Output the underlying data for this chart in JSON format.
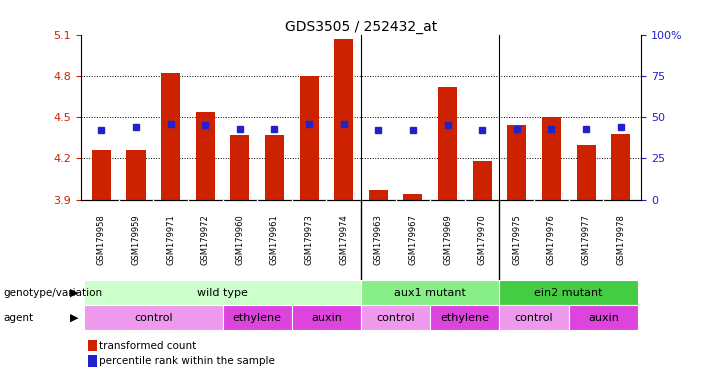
{
  "title": "GDS3505 / 252432_at",
  "samples": [
    "GSM179958",
    "GSM179959",
    "GSM179971",
    "GSM179972",
    "GSM179960",
    "GSM179961",
    "GSM179973",
    "GSM179974",
    "GSM179963",
    "GSM179967",
    "GSM179969",
    "GSM179970",
    "GSM179975",
    "GSM179976",
    "GSM179977",
    "GSM179978"
  ],
  "bar_values": [
    4.26,
    4.26,
    4.82,
    4.54,
    4.37,
    4.37,
    4.8,
    5.07,
    3.97,
    3.94,
    4.72,
    4.18,
    4.44,
    4.5,
    4.3,
    4.38
  ],
  "dot_values": [
    42,
    44,
    46,
    45,
    43,
    43,
    46,
    46,
    42,
    42,
    45,
    42,
    43,
    43,
    43,
    44
  ],
  "ymin": 3.9,
  "ymax": 5.1,
  "y_ticks": [
    3.9,
    4.2,
    4.5,
    4.8,
    5.1
  ],
  "right_yticks": [
    0,
    25,
    50,
    75,
    100
  ],
  "right_ytick_labels": [
    "0",
    "25",
    "50",
    "75",
    "100%"
  ],
  "bar_color": "#cc2200",
  "dot_color": "#2222cc",
  "genotype_groups": [
    {
      "label": "wild type",
      "start": 0,
      "end": 8,
      "color": "#ccffcc"
    },
    {
      "label": "aux1 mutant",
      "start": 8,
      "end": 12,
      "color": "#88ee88"
    },
    {
      "label": "ein2 mutant",
      "start": 12,
      "end": 16,
      "color": "#44cc44"
    }
  ],
  "agent_groups": [
    {
      "label": "control",
      "start": 0,
      "end": 4,
      "color": "#ee99ee"
    },
    {
      "label": "ethylene",
      "start": 4,
      "end": 6,
      "color": "#dd44dd"
    },
    {
      "label": "auxin",
      "start": 6,
      "end": 8,
      "color": "#dd44dd"
    },
    {
      "label": "control",
      "start": 8,
      "end": 10,
      "color": "#ee99ee"
    },
    {
      "label": "ethylene",
      "start": 10,
      "end": 12,
      "color": "#dd44dd"
    },
    {
      "label": "control",
      "start": 12,
      "end": 14,
      "color": "#ee99ee"
    },
    {
      "label": "auxin",
      "start": 14,
      "end": 16,
      "color": "#dd44dd"
    }
  ],
  "legend_items": [
    {
      "label": "transformed count",
      "color": "#cc2200"
    },
    {
      "label": "percentile rank within the sample",
      "color": "#2222cc"
    }
  ],
  "genotype_row_label": "genotype/variation",
  "agent_row_label": "agent"
}
